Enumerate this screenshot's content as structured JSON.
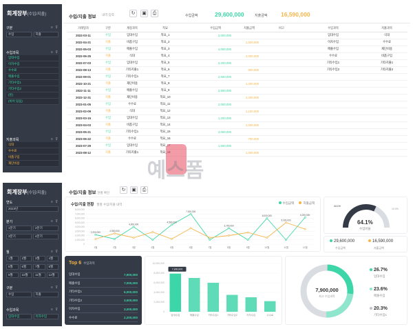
{
  "colors": {
    "income": "#3dd6a8",
    "expense": "#f5b54a",
    "sidebar": "#343a46",
    "accent_red": "#e84a5f"
  },
  "panelA": {
    "sidebar": {
      "title": "회계장부",
      "title_sub": "(수입/지출)",
      "sec1": {
        "label": "구분",
        "filter_icon": "filter-icon",
        "box1": "수입",
        "box2": "지출"
      },
      "income_sec": {
        "label": "수입과목",
        "items": [
          "임대수입",
          "이자수입",
          "수수료",
          "매출수입",
          "기타수입1",
          "기타수입2",
          "(빈)",
          "(비어 있음)"
        ]
      },
      "expense_sec": {
        "label": "지출과목",
        "items": [
          "식대",
          "수수료",
          "비품구입",
          "재단비용"
        ]
      }
    },
    "topbar": {
      "title": "수입/지출 정보",
      "subtitle": "내역 입력",
      "kpi_income_label": "수입금액",
      "kpi_income": "29,600,000",
      "kpi_expense_label": "지출금액",
      "kpi_expense": "16,590,000"
    },
    "table": {
      "headers": [
        "거래일자",
        "구분",
        "계정과목",
        "적요",
        "",
        "수입금액",
        "지출금액",
        "비고",
        "",
        "수입과목",
        "",
        "지출과목"
      ],
      "rows": [
        {
          "date": "2022-03-11",
          "type": "수입",
          "acct": "임대수입",
          "memo": "적요_1",
          "inc": "3,000,000",
          "exp": "",
          "icat": "임대수입",
          "ecat": "식대"
        },
        {
          "date": "2022-04-21",
          "type": "지출",
          "acct": "비품구입",
          "memo": "적요_2",
          "inc": "",
          "exp": "1,500,000",
          "icat": "이자수입",
          "ecat": "수수료"
        },
        {
          "date": "2022-05-03",
          "type": "수입",
          "acct": "매출수입",
          "memo": "적요_3",
          "inc": "4,000,000",
          "exp": "",
          "icat": "매출수입",
          "ecat": "재단비용"
        },
        {
          "date": "2022-06-25",
          "type": "지출",
          "acct": "식대",
          "memo": "적요_4",
          "inc": "",
          "exp": "2,000,000",
          "icat": "수수료",
          "ecat": "비품구입"
        },
        {
          "date": "2022-07-03",
          "type": "수입",
          "acct": "임대수입",
          "memo": "적요_5",
          "inc": "3,200,000",
          "exp": "",
          "icat": "기타수입1",
          "ecat": "기타지출1"
        },
        {
          "date": "2022-08-13",
          "type": "지출",
          "acct": "기타지출1",
          "memo": "적요_6",
          "inc": "",
          "exp": "900,000",
          "icat": "기타수입2",
          "ecat": "기타지출2"
        },
        {
          "date": "2022-09-01",
          "type": "수입",
          "acct": "기타수입1",
          "memo": "적요_7",
          "inc": "2,500,000",
          "exp": "",
          "icat": "",
          "ecat": ""
        },
        {
          "date": "2022-10-21",
          "type": "지출",
          "acct": "재단비용",
          "memo": "적요_8",
          "inc": "",
          "exp": "1,200,000",
          "icat": "",
          "ecat": ""
        },
        {
          "date": "2022-11-11",
          "type": "수입",
          "acct": "매출수입",
          "memo": "적요_9",
          "inc": "3,800,000",
          "exp": "",
          "icat": "",
          "ecat": ""
        },
        {
          "date": "2022-12-31",
          "type": "지출",
          "acct": "재단비용",
          "memo": "적요_10",
          "inc": "",
          "exp": "2,200,000",
          "icat": "",
          "ecat": ""
        },
        {
          "date": "2023-01-05",
          "type": "수입",
          "acct": "수수료",
          "memo": "적요_11",
          "inc": "2,000,000",
          "exp": "",
          "icat": "",
          "ecat": ""
        },
        {
          "date": "2023-02-09",
          "type": "지출",
          "acct": "식대",
          "memo": "적요_12",
          "inc": "",
          "exp": "1,100,000",
          "icat": "",
          "ecat": ""
        },
        {
          "date": "2023-03-15",
          "type": "수입",
          "acct": "임대수입",
          "memo": "적요_13",
          "inc": "1,200,000",
          "exp": "",
          "icat": "",
          "ecat": ""
        },
        {
          "date": "2023-04-03",
          "type": "지출",
          "acct": "비품구입",
          "memo": "적요_14",
          "inc": "",
          "exp": "2,000,000",
          "icat": "",
          "ecat": ""
        },
        {
          "date": "2023-05-21",
          "type": "수입",
          "acct": "기타수입1",
          "memo": "적요_15",
          "inc": "3,000,000",
          "exp": "",
          "icat": "",
          "ecat": ""
        },
        {
          "date": "2023-06-22",
          "type": "지출",
          "acct": "수수료",
          "memo": "적요_16",
          "inc": "",
          "exp": "700,000",
          "icat": "",
          "ecat": ""
        },
        {
          "date": "2023-07-29",
          "type": "수입",
          "acct": "임대수입",
          "memo": "적요_17",
          "inc": "1,500,000",
          "exp": "",
          "icat": "",
          "ecat": ""
        },
        {
          "date": "2023-08-12",
          "type": "지출",
          "acct": "기타지출1",
          "memo": "적요_18",
          "inc": "",
          "exp": "1,000,000",
          "icat": "",
          "ecat": ""
        }
      ]
    }
  },
  "watermark": "예스폼",
  "panelB": {
    "sidebar": {
      "title": "회계장부",
      "title_sub": "(수입/지출)",
      "year": {
        "label": "연도",
        "value": "2023년"
      },
      "quarter": {
        "label": "분기",
        "items": [
          "1분기",
          "2분기",
          "3분기",
          "4분기"
        ]
      },
      "month": {
        "label": "월",
        "items": [
          "1월",
          "2월",
          "3월",
          "4월",
          "5월",
          "6월",
          "7월",
          "8월",
          "9월",
          "10월",
          "11월",
          "12월"
        ]
      },
      "type": {
        "label": "구분",
        "items": [
          "수입",
          "지출"
        ]
      },
      "income_sec": {
        "label": "수입과목",
        "items": [
          "임대수입",
          "이자수입"
        ]
      }
    },
    "topbar": {
      "title": "수입/지출 정보",
      "subtitle": "현황 확인"
    },
    "trend": {
      "title": "수입/지출 현황",
      "subtitle": "월별 수입/지출 내역",
      "legend_income": "수입금액",
      "legend_expense": "지출금액"
    },
    "gauge": {
      "pct": "64.1%",
      "label": "수입비율",
      "left": "44.1%",
      "right": "10.0%"
    },
    "totals": {
      "income": "29,600,000",
      "income_label": "수입금액",
      "expense": "16,590,000",
      "expense_label": "지출금액"
    },
    "top6": {
      "title": "Top 6",
      "subtitle": "수입과목",
      "rows": [
        {
          "name": "임대수입",
          "value": "7,900,000"
        },
        {
          "name": "매출수입",
          "value": "7,000,000"
        },
        {
          "name": "기타수입1",
          "value": "6,000,000"
        },
        {
          "name": "기타수입2",
          "value": "3,500,000"
        },
        {
          "name": "이자수입",
          "value": "3,000,000"
        },
        {
          "name": "수수료",
          "value": "2,200,000"
        }
      ]
    },
    "donut": {
      "center_value": "7,900,000",
      "center_label": "최고 수입과목",
      "items": [
        {
          "pct": "26.7%",
          "name": "임대수입"
        },
        {
          "pct": "23.6%",
          "name": "매출수입"
        },
        {
          "pct": "20.3%",
          "name": "기타수입1"
        }
      ]
    }
  },
  "chart_data": [
    {
      "type": "line",
      "title": "수입/지출 현황",
      "categories": [
        "1월",
        "2월",
        "3월",
        "4월",
        "5월",
        "6월",
        "7월",
        "8월",
        "9월",
        "10월",
        "11월",
        "12월"
      ],
      "series": [
        {
          "name": "수입금액",
          "values": [
            2200000,
            1200000,
            4000000,
            1000000,
            4500000,
            7000000,
            1000000,
            3700000,
            1000000,
            6000000,
            1000000,
            6200000
          ]
        },
        {
          "name": "지출금액",
          "values": [
            1200000,
            2500000,
            1500000,
            2800000,
            1200000,
            3700000,
            1500000,
            2000000,
            2700000,
            1500000,
            5000000,
            3500000
          ]
        }
      ],
      "ylim": [
        0,
        8000000
      ]
    },
    {
      "type": "bar",
      "categories": [
        "임대수입",
        "매출수입",
        "기타수입1",
        "기타수입2",
        "이자수입",
        "수수료"
      ],
      "values": [
        7900000,
        7000000,
        6000000,
        3500000,
        3000000,
        2200000
      ],
      "ylim": [
        0,
        10000000
      ]
    }
  ]
}
